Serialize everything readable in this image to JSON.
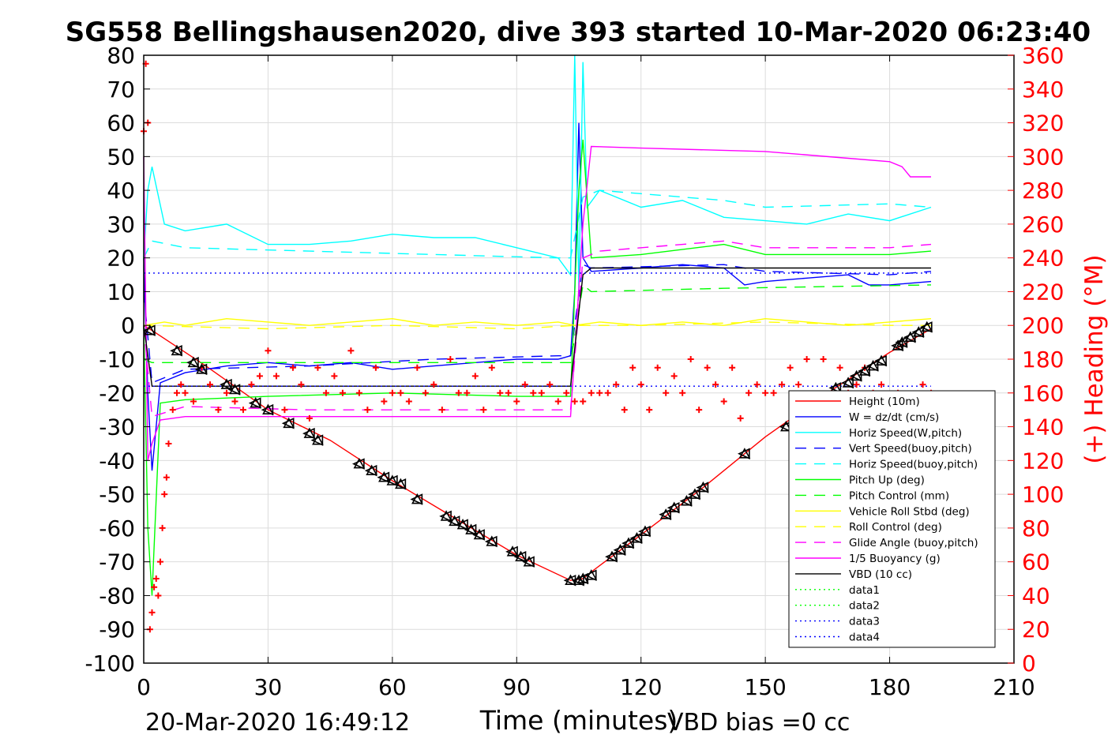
{
  "chart_data": {
    "type": "line",
    "title": "SG558 Bellingshausen2020, dive 393 started 10-Mar-2020 06:23:40",
    "xlabel": "Time (minutes)",
    "ylabel": "",
    "ylabel_right": "(+) Heading (°M)",
    "xlim": [
      0,
      210
    ],
    "ylim": [
      -100,
      80
    ],
    "ylim_right": [
      0,
      360
    ],
    "xticks": [
      "0",
      "30",
      "60",
      "90",
      "120",
      "150",
      "180",
      "210"
    ],
    "yticks": [
      "80",
      "70",
      "60",
      "50",
      "40",
      "30",
      "20",
      "10",
      "0",
      "-10",
      "-20",
      "-30",
      "-40",
      "-50",
      "-60",
      "-70",
      "-80",
      "-90",
      "-100"
    ],
    "yticks_right": [
      "360",
      "340",
      "320",
      "300",
      "280",
      "260",
      "240",
      "220",
      "200",
      "180",
      "160",
      "140",
      "120",
      "100",
      "80",
      "60",
      "40",
      "20",
      "0"
    ],
    "grid": true,
    "legend_position": "bottom-right",
    "colors": {
      "height": "#ff0000",
      "w": "#0000ff",
      "horiz_w": "#00ffff",
      "vert_buoy": "#0000ff",
      "horiz_buoy": "#00ffff",
      "pitch_up": "#00ff00",
      "pitch_control": "#00ff00",
      "roll": "#ffff00",
      "roll_control": "#ffff00",
      "glide": "#ff00ff",
      "buoyancy": "#ff00ff",
      "vbd": "#000000",
      "heading": "#ff0000"
    },
    "series": [
      {
        "key": "height",
        "name": "Height (10m)",
        "color": "#ff0000",
        "dash": "",
        "x": [
          0,
          2,
          15,
          30,
          45,
          60,
          75,
          90,
          103,
          106,
          108,
          120,
          135,
          150,
          165,
          180,
          190
        ],
        "y": [
          0,
          -1.5,
          -12,
          -25,
          -34,
          -46,
          -57,
          -68,
          -75.5,
          -75,
          -73,
          -62,
          -48,
          -33,
          -20,
          -8,
          -1
        ]
      },
      {
        "key": "w",
        "name": "W = dz/dt (cm/s)",
        "color": "#0000ff",
        "dash": "",
        "x": [
          0,
          1,
          2,
          4,
          10,
          20,
          30,
          40,
          50,
          60,
          70,
          80,
          90,
          100,
          103,
          104,
          105,
          106,
          108,
          120,
          130,
          140,
          145,
          150,
          160,
          170,
          175,
          180,
          190
        ],
        "y": [
          20,
          -20,
          -43,
          -17,
          -14,
          -12,
          -11,
          -12,
          -11,
          -13,
          -12,
          -11,
          -10,
          -10,
          -9,
          10,
          60,
          20,
          16,
          17,
          18,
          17,
          12,
          13,
          14,
          15,
          12,
          12,
          13
        ]
      },
      {
        "key": "horiz_w",
        "name": "Horiz Speed(W,pitch)",
        "color": "#00ffff",
        "dash": "",
        "x": [
          0,
          1,
          2,
          5,
          10,
          20,
          30,
          40,
          50,
          60,
          70,
          80,
          90,
          100,
          103,
          104,
          105,
          106,
          107,
          110,
          120,
          130,
          140,
          150,
          160,
          170,
          180,
          190
        ],
        "y": [
          20,
          40,
          47,
          30,
          28,
          30,
          24,
          24,
          25,
          27,
          26,
          26,
          23,
          20,
          15,
          80,
          10,
          78,
          35,
          40,
          35,
          37,
          32,
          31,
          30,
          33,
          31,
          35
        ]
      },
      {
        "key": "vert_buoy",
        "name": "Vert Speed(buoy,pitch)",
        "color": "#0000ff",
        "dash": "14,10",
        "x": [
          0,
          2,
          10,
          40,
          70,
          100,
          103,
          106,
          108,
          140,
          150,
          180,
          190
        ],
        "y": [
          10,
          -17,
          -13,
          -12,
          -10,
          -9,
          -9,
          18,
          17,
          18,
          16,
          15,
          16
        ]
      },
      {
        "key": "horiz_buoy",
        "name": "Horiz Speed(buoy,pitch)",
        "color": "#00ffff",
        "dash": "14,10",
        "x": [
          0,
          2,
          10,
          40,
          70,
          100,
          103,
          106,
          110,
          140,
          150,
          180,
          190
        ],
        "y": [
          20,
          25,
          23,
          22,
          21,
          20,
          20,
          38,
          40,
          37,
          35,
          36,
          35
        ]
      },
      {
        "key": "pitch_up",
        "name": "Pitch Up (deg)",
        "color": "#00ff00",
        "dash": "",
        "x": [
          0,
          1,
          2,
          4,
          10,
          30,
          60,
          90,
          103,
          105,
          106,
          108,
          120,
          140,
          150,
          180,
          190
        ],
        "y": [
          0,
          -60,
          -80,
          -23,
          -22,
          -21,
          -20,
          -21,
          -21,
          40,
          55,
          20,
          21,
          24,
          21,
          21,
          22
        ]
      },
      {
        "key": "pitch_control",
        "name": "Pitch Control (mm)",
        "color": "#00ff00",
        "dash": "14,10",
        "x": [
          0,
          2,
          10,
          60,
          103,
          106,
          108,
          140,
          190
        ],
        "y": [
          -10,
          -11,
          -11,
          -11,
          -11,
          12,
          10,
          11,
          12
        ]
      },
      {
        "key": "roll",
        "name": "Vehicle Roll Stbd (deg)",
        "color": "#ffff00",
        "dash": "",
        "x": [
          0,
          5,
          10,
          20,
          30,
          40,
          50,
          60,
          70,
          80,
          90,
          100,
          104,
          110,
          120,
          130,
          140,
          150,
          160,
          170,
          180,
          190
        ],
        "y": [
          0,
          1,
          0,
          2,
          1,
          0,
          1,
          2,
          0,
          1,
          0,
          1,
          0,
          1,
          0,
          1,
          0,
          2,
          1,
          0,
          1,
          2
        ]
      },
      {
        "key": "roll_control",
        "name": "Roll Control (deg)",
        "color": "#ffff00",
        "dash": "14,10",
        "x": [
          0,
          30,
          60,
          90,
          104,
          120,
          150,
          180,
          190
        ],
        "y": [
          0,
          -1,
          0,
          -1,
          0,
          0,
          1,
          0,
          0
        ]
      },
      {
        "key": "glide",
        "name": "Glide Angle (buoy,pitch)",
        "color": "#ff00ff",
        "dash": "14,10",
        "x": [
          0,
          2,
          10,
          40,
          70,
          100,
          103,
          106,
          110,
          140,
          150,
          180,
          190
        ],
        "y": [
          0,
          -27,
          -24,
          -25,
          -25,
          -25,
          -25,
          20,
          22,
          25,
          23,
          23,
          24
        ]
      },
      {
        "key": "buoyancy",
        "name": "1/5 Buoyancy (g)",
        "color": "#ff00ff",
        "dash": "",
        "x": [
          0,
          1,
          2,
          4,
          10,
          40,
          70,
          100,
          103,
          106,
          108,
          120,
          150,
          170,
          180,
          183,
          185,
          190
        ],
        "y": [
          50,
          -40,
          -35,
          -28,
          -27,
          -27,
          -27,
          -27,
          -27,
          30,
          53,
          52.5,
          51.5,
          49.5,
          48.5,
          47,
          44,
          44
        ]
      },
      {
        "key": "vbd",
        "name": "VBD (10 cc)",
        "color": "#000000",
        "dash": "",
        "x": [
          0,
          2,
          20,
          50,
          80,
          103,
          106,
          108,
          130,
          160,
          190
        ],
        "y": [
          0,
          -18,
          -18,
          -18,
          -18,
          -18,
          15,
          17,
          17,
          17,
          17
        ]
      },
      {
        "key": "data1",
        "name": "data1",
        "color": "#00ff00",
        "dash": "2,4",
        "x": [],
        "y": []
      },
      {
        "key": "data2",
        "name": "data2",
        "color": "#00ff00",
        "dash": "2,4",
        "x": [],
        "y": []
      },
      {
        "key": "data3",
        "name": "data3",
        "color": "#0000ff",
        "dash": "2,4",
        "x": [
          0,
          190
        ],
        "y": [
          -18,
          -18
        ]
      },
      {
        "key": "data4",
        "name": "data4",
        "color": "#0000ff",
        "dash": "2,4",
        "x": [
          0,
          190
        ],
        "y": [
          15.5,
          15.5
        ]
      }
    ],
    "heading": {
      "name": "(+) Heading (°M)",
      "color": "#ff0000",
      "x": [
        0,
        0.5,
        1,
        1.5,
        2,
        2.5,
        3,
        3.5,
        4,
        4.5,
        5,
        5.5,
        6,
        7,
        8,
        9,
        10,
        12,
        14,
        16,
        18,
        20,
        22,
        24,
        26,
        28,
        30,
        32,
        34,
        36,
        38,
        40,
        42,
        44,
        46,
        48,
        50,
        52,
        54,
        56,
        58,
        60,
        62,
        64,
        66,
        68,
        70,
        72,
        74,
        76,
        78,
        80,
        82,
        84,
        86,
        88,
        90,
        92,
        94,
        96,
        98,
        100,
        102,
        104,
        106,
        108,
        110,
        112,
        114,
        116,
        118,
        120,
        122,
        124,
        126,
        128,
        130,
        132,
        134,
        136,
        138,
        140,
        142,
        144,
        146,
        148,
        150,
        152,
        154,
        156,
        158,
        160,
        162,
        164,
        166,
        168,
        170,
        172,
        174,
        176,
        178,
        180,
        182,
        184,
        186,
        188,
        190
      ],
      "y": [
        315,
        355,
        320,
        20,
        30,
        45,
        50,
        40,
        60,
        80,
        100,
        110,
        130,
        150,
        160,
        165,
        160,
        155,
        175,
        165,
        150,
        160,
        155,
        150,
        165,
        170,
        185,
        170,
        150,
        175,
        165,
        145,
        175,
        160,
        170,
        160,
        185,
        160,
        150,
        175,
        155,
        160,
        160,
        155,
        175,
        160,
        165,
        150,
        180,
        160,
        160,
        170,
        150,
        175,
        160,
        160,
        155,
        165,
        160,
        160,
        165,
        155,
        160,
        155,
        155,
        160,
        160,
        160,
        165,
        150,
        175,
        165,
        150,
        175,
        160,
        170,
        160,
        180,
        150,
        175,
        165,
        155,
        175,
        145,
        160,
        165,
        160,
        160,
        165,
        175,
        165,
        180,
        150,
        180,
        160,
        175,
        160,
        165,
        175,
        160,
        165,
        155,
        160,
        155,
        150,
        165,
        160
      ]
    },
    "vbd_markers": {
      "x": [
        1.5,
        8,
        12,
        14,
        20,
        22,
        27,
        30,
        35,
        40,
        42,
        52,
        55,
        58,
        60,
        62,
        66,
        73,
        75,
        77,
        79,
        81,
        84,
        89,
        91,
        93,
        103,
        105,
        106,
        108,
        113,
        115,
        117,
        119,
        121,
        126,
        128,
        131,
        133,
        135,
        145,
        155,
        167,
        170,
        172,
        174,
        176,
        178,
        182,
        183,
        185,
        187,
        189
      ],
      "y": [
        -1.5,
        -7.5,
        -11,
        -13,
        -17.5,
        -19,
        -23,
        -25,
        -29,
        -32,
        -34,
        -41,
        -43,
        -45,
        -46,
        -47,
        -51.5,
        -56.5,
        -58,
        -59,
        -60.5,
        -62,
        -64,
        -67,
        -68.5,
        -70,
        -75.5,
        -75.5,
        -75,
        -74,
        -68.5,
        -66.5,
        -64.5,
        -63,
        -61,
        -56,
        -54,
        -52,
        -50,
        -48,
        -38,
        -30,
        -18.5,
        -17,
        -15,
        -13.5,
        -12,
        -10.5,
        -6,
        -5,
        -3.5,
        -2,
        -0.5
      ]
    }
  },
  "footer": {
    "start_time": "20-Mar-2020 16:49:12",
    "vbd_bias": "VBD bias =0 cc"
  }
}
